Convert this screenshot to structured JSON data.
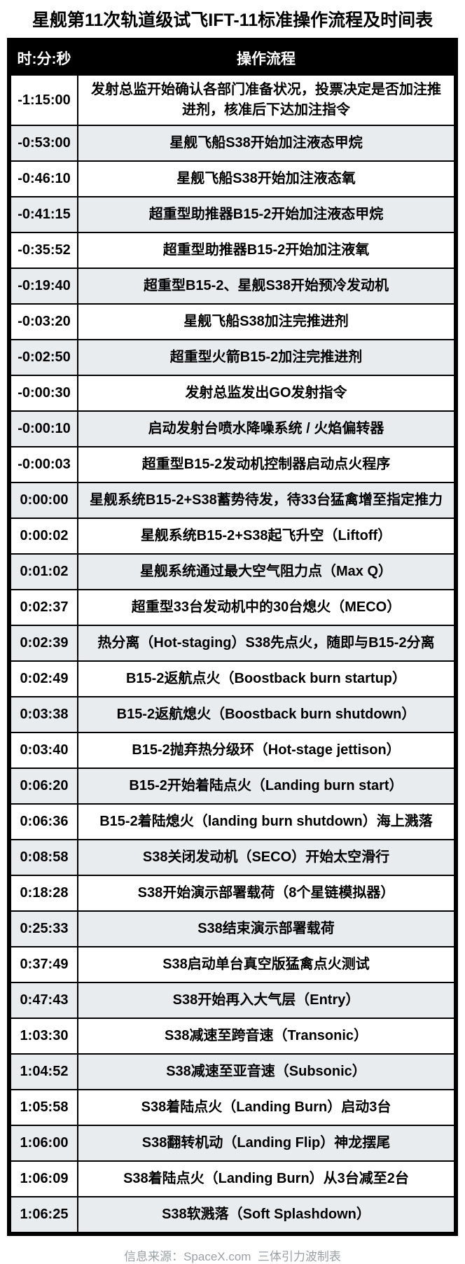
{
  "title": "星舰第11次轨道级试飞IFT-11标准操作流程及时间表",
  "table": {
    "headers": {
      "time": "时:分:秒",
      "operation": "操作流程"
    },
    "rows": [
      {
        "time": "-1:15:00",
        "op": "发射总监开始确认各部门准备状况，投票决定是否加注推进剂，核准后下达加注指令"
      },
      {
        "time": "-0:53:00",
        "op": "星舰飞船S38开始加注液态甲烷"
      },
      {
        "time": "-0:46:10",
        "op": "星舰飞船S38开始加注液态氧"
      },
      {
        "time": "-0:41:15",
        "op": "超重型助推器B15-2开始加注液态甲烷"
      },
      {
        "time": "-0:35:52",
        "op": "超重型助推器B15-2开始加注液氧"
      },
      {
        "time": "-0:19:40",
        "op": "超重型B15-2、星舰S38开始预冷发动机"
      },
      {
        "time": "-0:03:20",
        "op": "星舰飞船S38加注完推进剂"
      },
      {
        "time": "-0:02:50",
        "op": "超重型火箭B15-2加注完推进剂"
      },
      {
        "time": "-0:00:30",
        "op": "发射总监发出GO发射指令"
      },
      {
        "time": "-0:00:10",
        "op": "启动发射台喷水降噪系统 / 火焰偏转器"
      },
      {
        "time": "-0:00:03",
        "op": "超重型B15-2发动机控制器启动点火程序"
      },
      {
        "time": "0:00:00",
        "op": "星舰系统B15-2+S38蓄势待发，待33台猛禽增至指定推力"
      },
      {
        "time": "0:00:02",
        "op": "星舰系统B15-2+S38起飞升空（Liftoff）"
      },
      {
        "time": "0:01:02",
        "op": "星舰系统通过最大空气阻力点（Max Q）"
      },
      {
        "time": "0:02:37",
        "op": "超重型33台发动机中的30台熄火（MECO）"
      },
      {
        "time": "0:02:39",
        "op": "热分离（Hot-staging）S38先点火，随即与B15-2分离"
      },
      {
        "time": "0:02:49",
        "op": "B15-2返航点火（Boostback burn startup）"
      },
      {
        "time": "0:03:38",
        "op": "B15-2返航熄火（Boostback burn shutdown）"
      },
      {
        "time": "0:03:40",
        "op": "B15-2抛弃热分级环（Hot-stage jettison）"
      },
      {
        "time": "0:06:20",
        "op": "B15-2开始着陆点火（Landing burn start）"
      },
      {
        "time": "0:06:36",
        "op": "B15-2着陆熄火（landing burn shutdown）海上溅落"
      },
      {
        "time": "0:08:58",
        "op": "S38关闭发动机（SECO）开始太空滑行"
      },
      {
        "time": "0:18:28",
        "op": "S38开始演示部署载荷（8个星链模拟器）"
      },
      {
        "time": "0:25:33",
        "op": "S38结束演示部署载荷"
      },
      {
        "time": "0:37:49",
        "op": "S38启动单台真空版猛禽点火测试"
      },
      {
        "time": "0:47:43",
        "op": "S38开始再入大气层（Entry）"
      },
      {
        "time": "1:03:30",
        "op": "S38减速至跨音速（Transonic）"
      },
      {
        "time": "1:04:52",
        "op": "S38减速至亚音速（Subsonic）"
      },
      {
        "time": "1:05:58",
        "op": "S38着陆点火（Landing Burn）启动3台"
      },
      {
        "time": "1:06:00",
        "op": "S38翻转机动（Landing Flip）神龙摆尾"
      },
      {
        "time": "1:06:09",
        "op": "S38着陆点火（Landing Burn）从3台减至2台"
      },
      {
        "time": "1:06:25",
        "op": "S38软溅落（Soft Splashdown）"
      }
    ]
  },
  "footer": "信息来源：SpaceX.com  三体引力波制表",
  "colors": {
    "header_bg": "#000000",
    "header_text": "#ffffff",
    "row_alt_bg": "#e8ecef",
    "row_bg": "#ffffff",
    "border": "#000000",
    "footer_text": "#9aa0a4"
  }
}
